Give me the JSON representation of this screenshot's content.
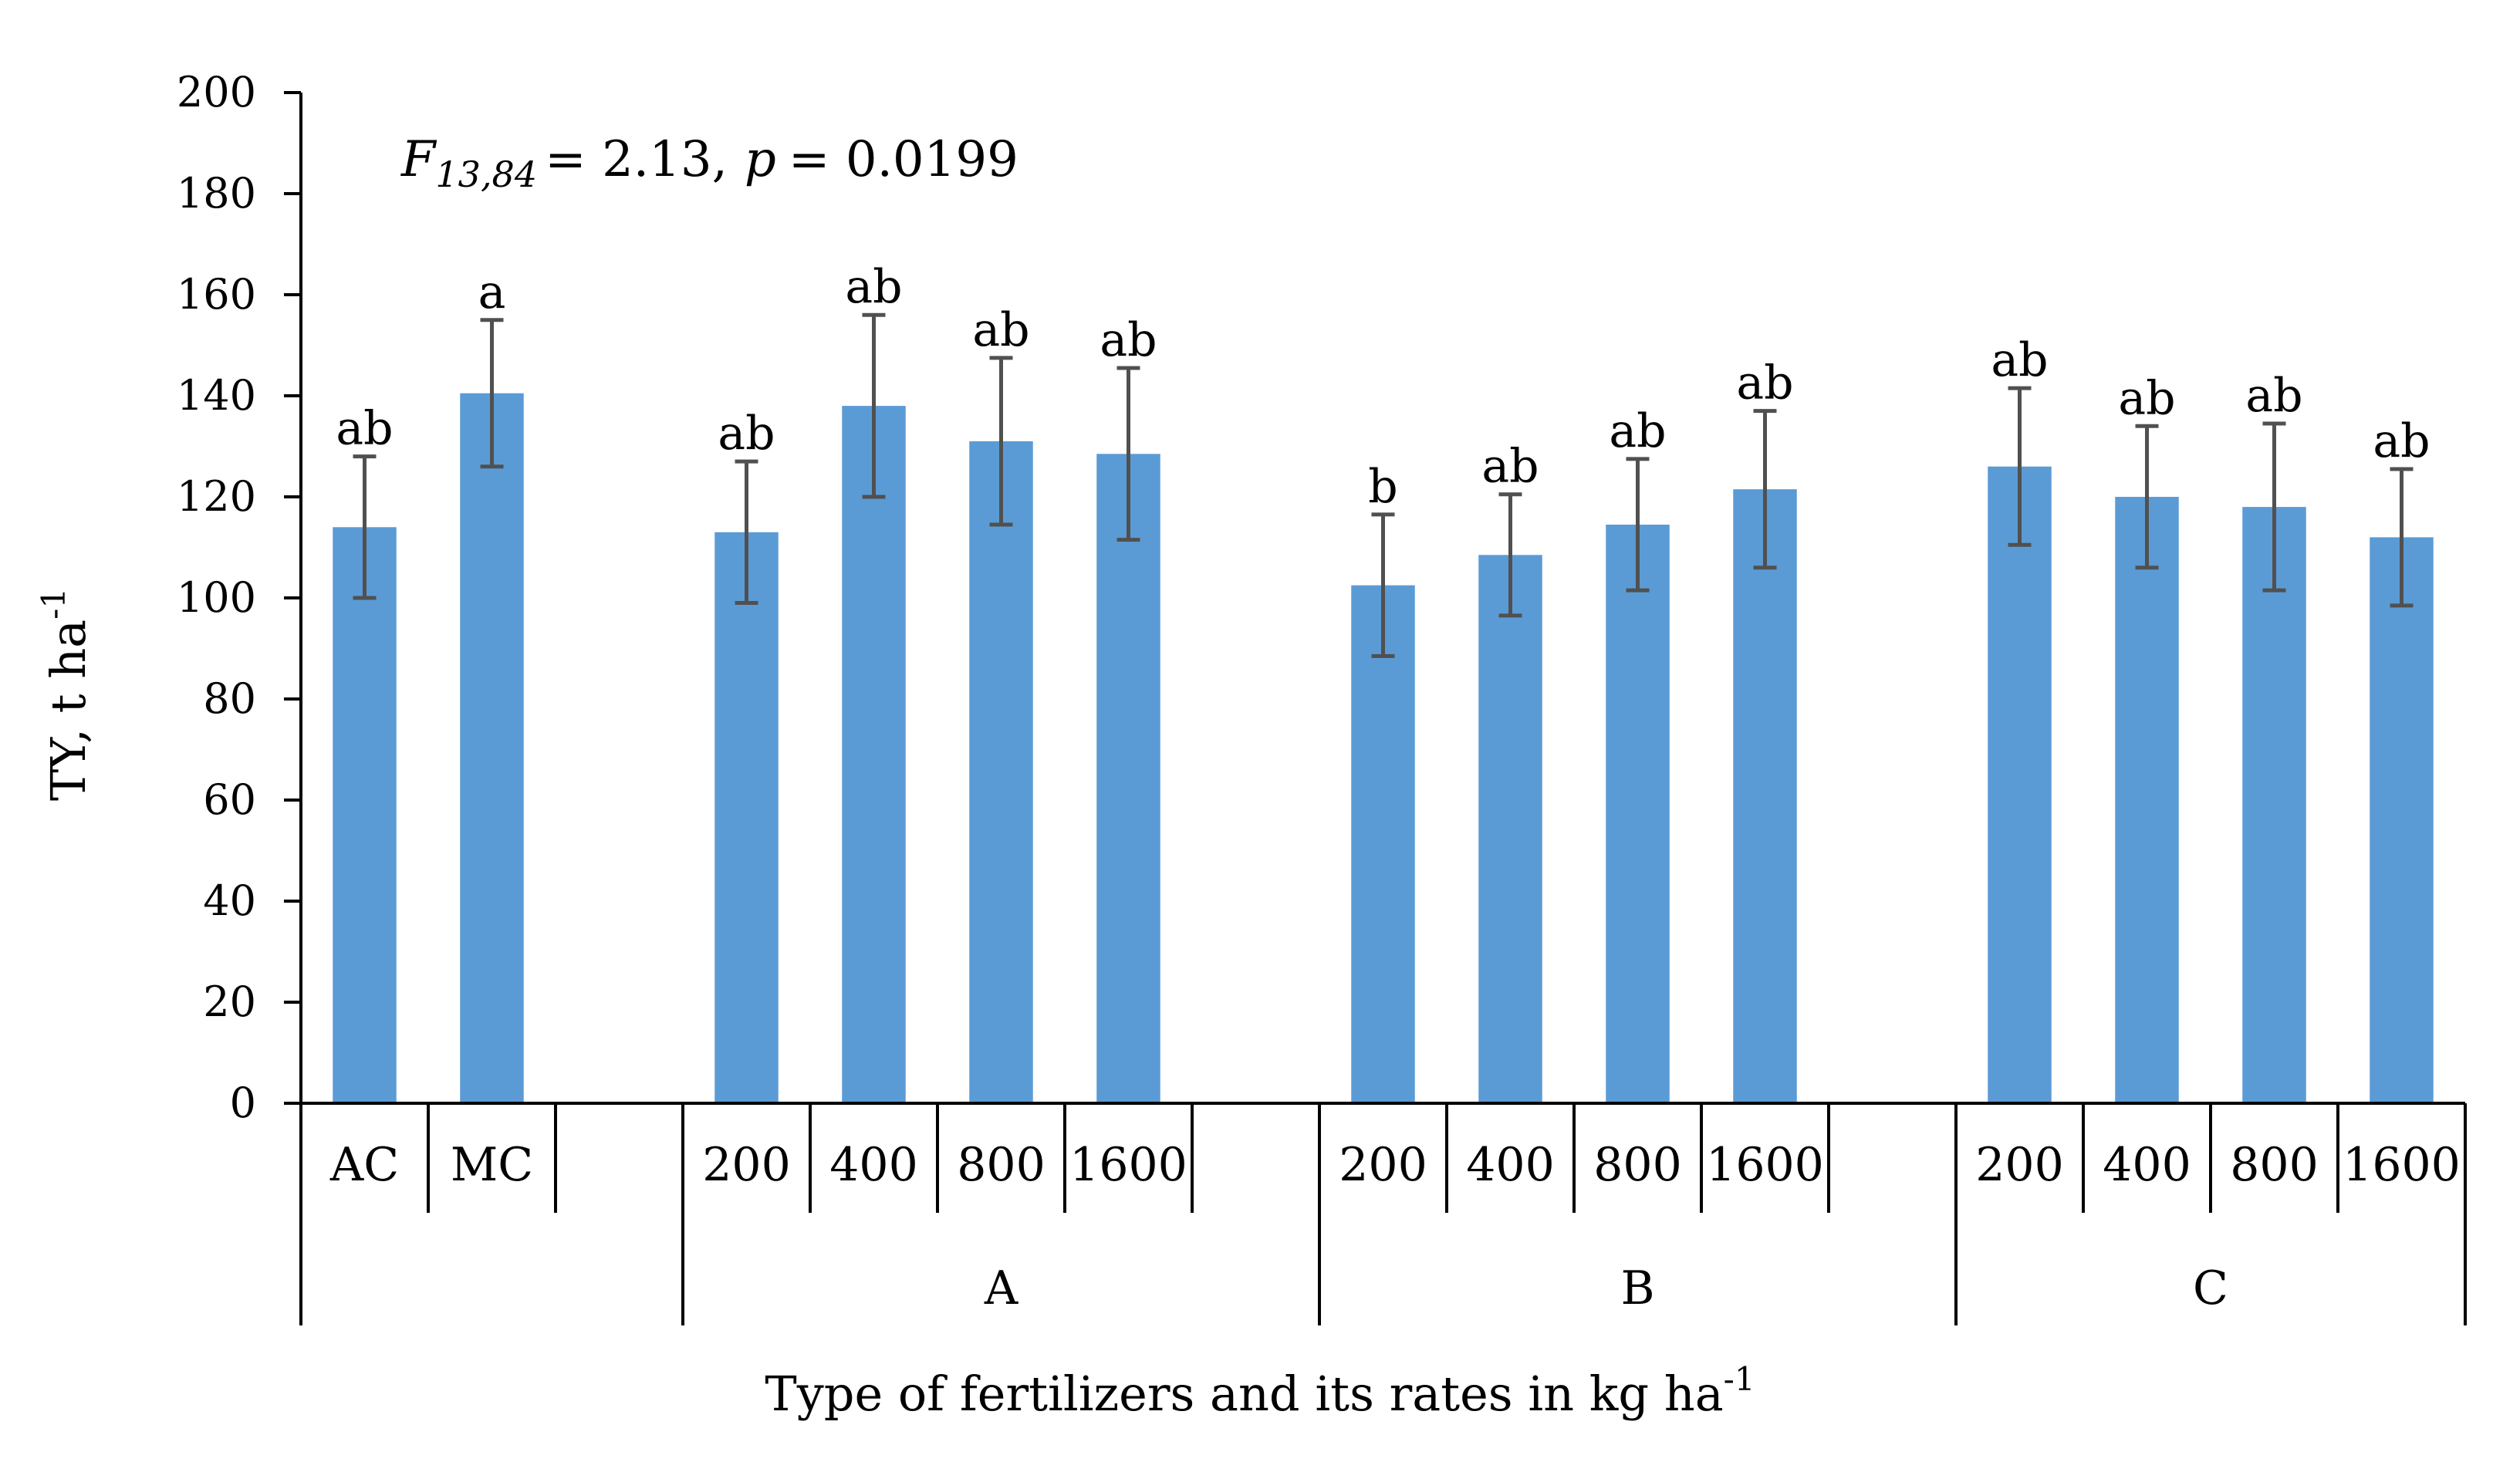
{
  "chart_data": {
    "type": "bar",
    "title": "",
    "annotation": {
      "F_symbol": "F",
      "F_subscript": "13,84",
      "F_value": "= 2.13,",
      "p_symbol": "p",
      "p_value": "= 0.0199"
    },
    "ylabel": "TY, t ha",
    "ylabel_sup": "-1",
    "xlabel": "Type of fertilizers and its rates in kg ha",
    "xlabel_sup": "-1",
    "ylim": [
      0,
      200
    ],
    "ytick_step": 20,
    "yticks": [
      "0",
      "20",
      "40",
      "60",
      "80",
      "100",
      "120",
      "140",
      "160",
      "180",
      "200"
    ],
    "bar_color": "#5b9bd5",
    "error_color": "#505050",
    "groups": [
      {
        "name": "",
        "categories": [
          "AC",
          "MC"
        ]
      },
      {
        "name": "A",
        "categories": [
          "200",
          "400",
          "800",
          "1600"
        ]
      },
      {
        "name": "B",
        "categories": [
          "200",
          "400",
          "800",
          "1600"
        ]
      },
      {
        "name": "C",
        "categories": [
          "200",
          "400",
          "800",
          "1600"
        ]
      }
    ],
    "bars": [
      {
        "group": 0,
        "slot": 0,
        "category": "AC",
        "value": 114,
        "error": 14,
        "letter": "ab"
      },
      {
        "group": 0,
        "slot": 1,
        "category": "MC",
        "value": 140.5,
        "error": 14.5,
        "letter": "a"
      },
      {
        "group": 1,
        "slot": 0,
        "category": "200",
        "value": 113,
        "error": 14,
        "letter": "ab"
      },
      {
        "group": 1,
        "slot": 1,
        "category": "400",
        "value": 138,
        "error": 18,
        "letter": "ab"
      },
      {
        "group": 1,
        "slot": 2,
        "category": "800",
        "value": 131,
        "error": 16.5,
        "letter": "ab"
      },
      {
        "group": 1,
        "slot": 3,
        "category": "1600",
        "value": 128.5,
        "error": 17,
        "letter": "ab"
      },
      {
        "group": 2,
        "slot": 0,
        "category": "200",
        "value": 102.5,
        "error": 14,
        "letter": "b"
      },
      {
        "group": 2,
        "slot": 1,
        "category": "400",
        "value": 108.5,
        "error": 12,
        "letter": "ab"
      },
      {
        "group": 2,
        "slot": 2,
        "category": "800",
        "value": 114.5,
        "error": 13,
        "letter": "ab"
      },
      {
        "group": 2,
        "slot": 3,
        "category": "1600",
        "value": 121.5,
        "error": 15.5,
        "letter": "ab"
      },
      {
        "group": 3,
        "slot": 0,
        "category": "200",
        "value": 126,
        "error": 15.5,
        "letter": "ab"
      },
      {
        "group": 3,
        "slot": 1,
        "category": "400",
        "value": 120,
        "error": 14,
        "letter": "ab"
      },
      {
        "group": 3,
        "slot": 2,
        "category": "800",
        "value": 118,
        "error": 16.5,
        "letter": "ab"
      },
      {
        "group": 3,
        "slot": 3,
        "category": "1600",
        "value": 112,
        "error": 13.5,
        "letter": "ab"
      }
    ]
  }
}
